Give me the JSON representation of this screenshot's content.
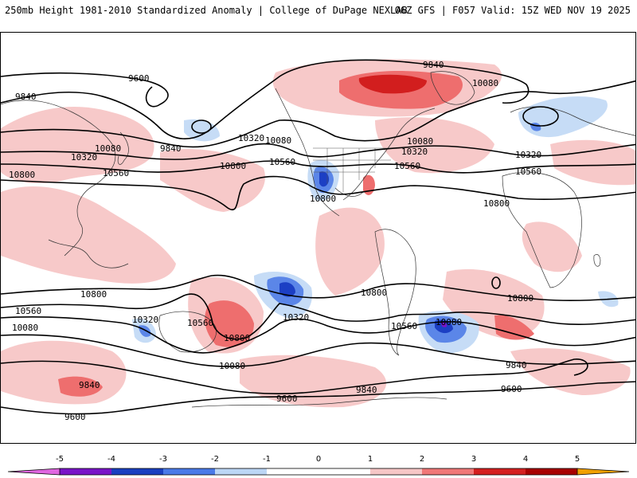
{
  "header": {
    "left": "250mb Height 1981-2010 Standardized Anomaly | College of DuPage NEXLAB",
    "right": "06Z GFS | F057 Valid: 15Z WED NOV 19 2025"
  },
  "contour_labels": [
    "9600",
    "9840",
    "10080",
    "10320",
    "10560",
    "10800"
  ],
  "colorbar": {
    "ticks": [
      "-5",
      "-4",
      "-3",
      "-2",
      "-1",
      "0",
      "1",
      "2",
      "3",
      "4",
      "5"
    ],
    "colors": {
      "m5": "#e066e0",
      "m4": "#7a14c8",
      "m3": "#1a3fc0",
      "m2": "#4a7ae8",
      "m1": "#bcd6f5",
      "zero": "#ffffff",
      "p1": "#f6c6c6",
      "p2": "#f07878",
      "p3": "#d42020",
      "p4": "#a80000",
      "p5": "#f0a000"
    }
  },
  "anomaly_colors": {
    "pos1": "#f7c9c9",
    "pos2": "#ee6e6e",
    "pos3": "#d21e1e",
    "neg1": "#c6dcf6",
    "neg2": "#5b86e8",
    "neg3": "#1c3fc4",
    "neg4": "#7a14c8"
  }
}
